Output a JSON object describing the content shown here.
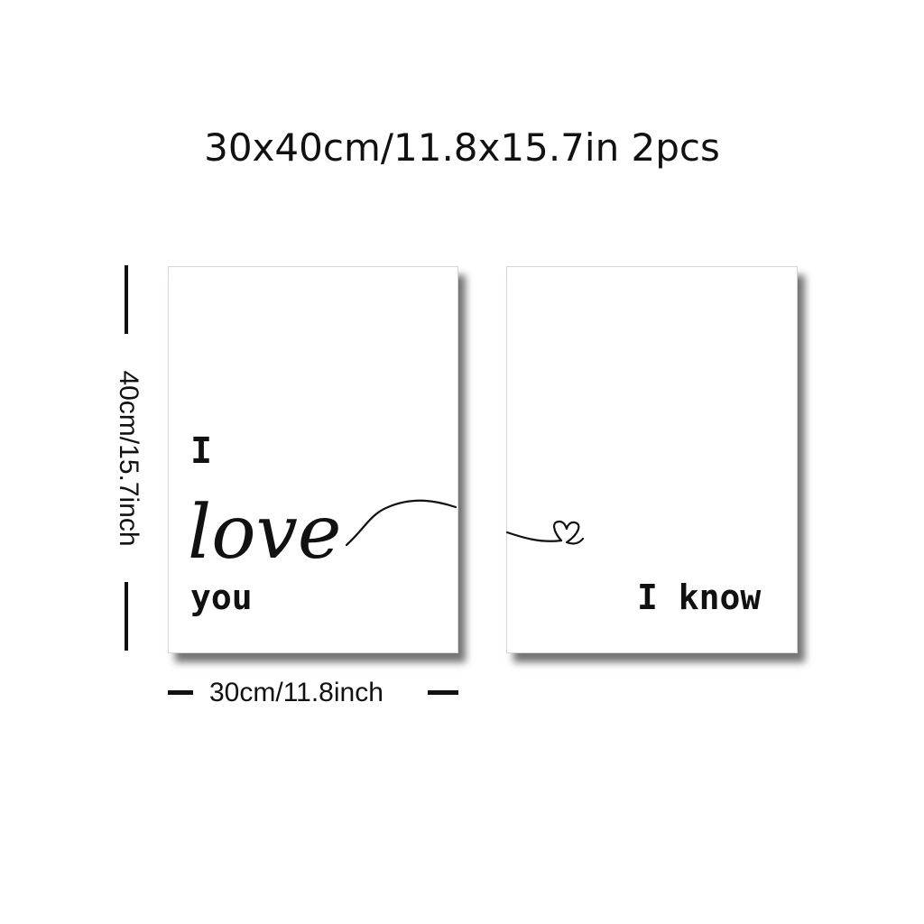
{
  "title": "30x40cm/11.8x15.7in 2pcs",
  "panels": {
    "left": {
      "line1": "I",
      "script": "love",
      "line3": "you"
    },
    "right": {
      "text": "I know"
    }
  },
  "dimensions": {
    "height_label": "40cm/15.7inch",
    "width_label": "30cm/11.8inch"
  },
  "decorations": {
    "heart_icon": "heart-icon",
    "ink_color": "#111111",
    "background": "#ffffff"
  }
}
